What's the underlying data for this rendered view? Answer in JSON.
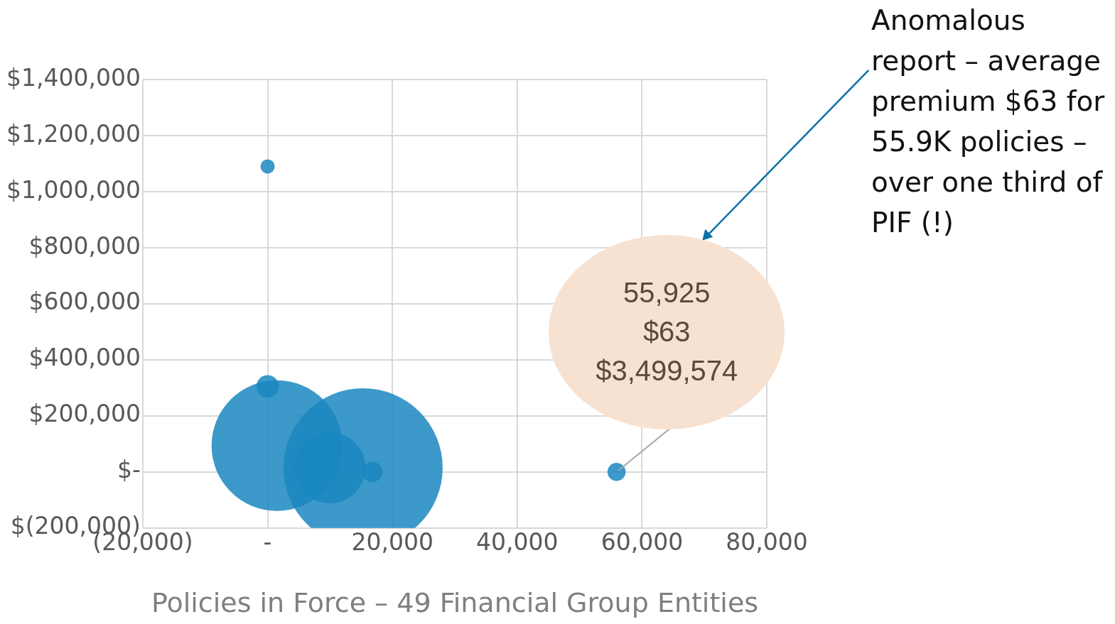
{
  "chart_data": {
    "type": "bubble",
    "xlabel": "Policies in Force – 49 Financial Group Entities",
    "x": [
      0,
      0,
      1500,
      15300,
      16800,
      55925,
      10000
    ],
    "values": [
      1090000,
      305000,
      94000,
      15000,
      0,
      0,
      15000
    ],
    "sizes": [
      0.008,
      0.02,
      0.675,
      1,
      0.016,
      0.013,
      0.2
    ],
    "color": "#1a87c0",
    "xlim": [
      -20000,
      80000
    ],
    "xticks": [
      {
        "value": -20000,
        "label": "(20,000)"
      },
      {
        "value": 0,
        "label": "-"
      },
      {
        "value": 20000,
        "label": "20,000"
      },
      {
        "value": 40000,
        "label": "40,000"
      },
      {
        "value": 60000,
        "label": "60,000"
      },
      {
        "value": 80000,
        "label": "80,000"
      }
    ],
    "ylim": [
      -200000,
      1400000
    ],
    "yticks": [
      {
        "value": -200000,
        "label": "$(200,000)"
      },
      {
        "value": 0,
        "label": "$-"
      },
      {
        "value": 200000,
        "label": "$200,000"
      },
      {
        "value": 400000,
        "label": "$400,000"
      },
      {
        "value": 600000,
        "label": "$600,000"
      },
      {
        "value": 800000,
        "label": "$800,000"
      },
      {
        "value": 1000000,
        "label": "$1,000,000"
      },
      {
        "value": 1200000,
        "label": "$1,200,000"
      },
      {
        "value": 1400000,
        "label": "$1,400,000"
      }
    ],
    "grid": true,
    "legend": false,
    "annotations": [
      "55,925\n$63\n$3,499,574",
      "Anomalous report – average premium $63 for 55.9K policies – over one third of PIF (!)"
    ]
  }
}
